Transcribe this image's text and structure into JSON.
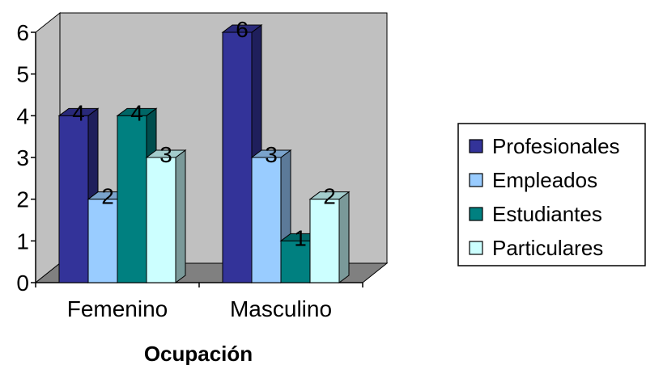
{
  "chart_data": {
    "type": "bar",
    "categories": [
      "Femenino",
      "Masculino"
    ],
    "series": [
      {
        "name": "Profesionales",
        "values": [
          4,
          6
        ],
        "color": "#333399"
      },
      {
        "name": "Empleados",
        "values": [
          2,
          3
        ],
        "color": "#99CCFF"
      },
      {
        "name": "Estudiantes",
        "values": [
          4,
          1
        ],
        "color": "#008080"
      },
      {
        "name": "Particulares",
        "values": [
          3,
          2
        ],
        "color": "#CCFFFF"
      }
    ],
    "yticks": [
      "0",
      "1",
      "2",
      "3",
      "4",
      "5",
      "6"
    ],
    "ylim": [
      0,
      6
    ],
    "xlabel": "Ocupación",
    "ylabel": "",
    "title": "",
    "grid": false,
    "legend": "right",
    "wall_color": "#C0C0C0",
    "floor_color": "#808080",
    "three_d": true
  }
}
